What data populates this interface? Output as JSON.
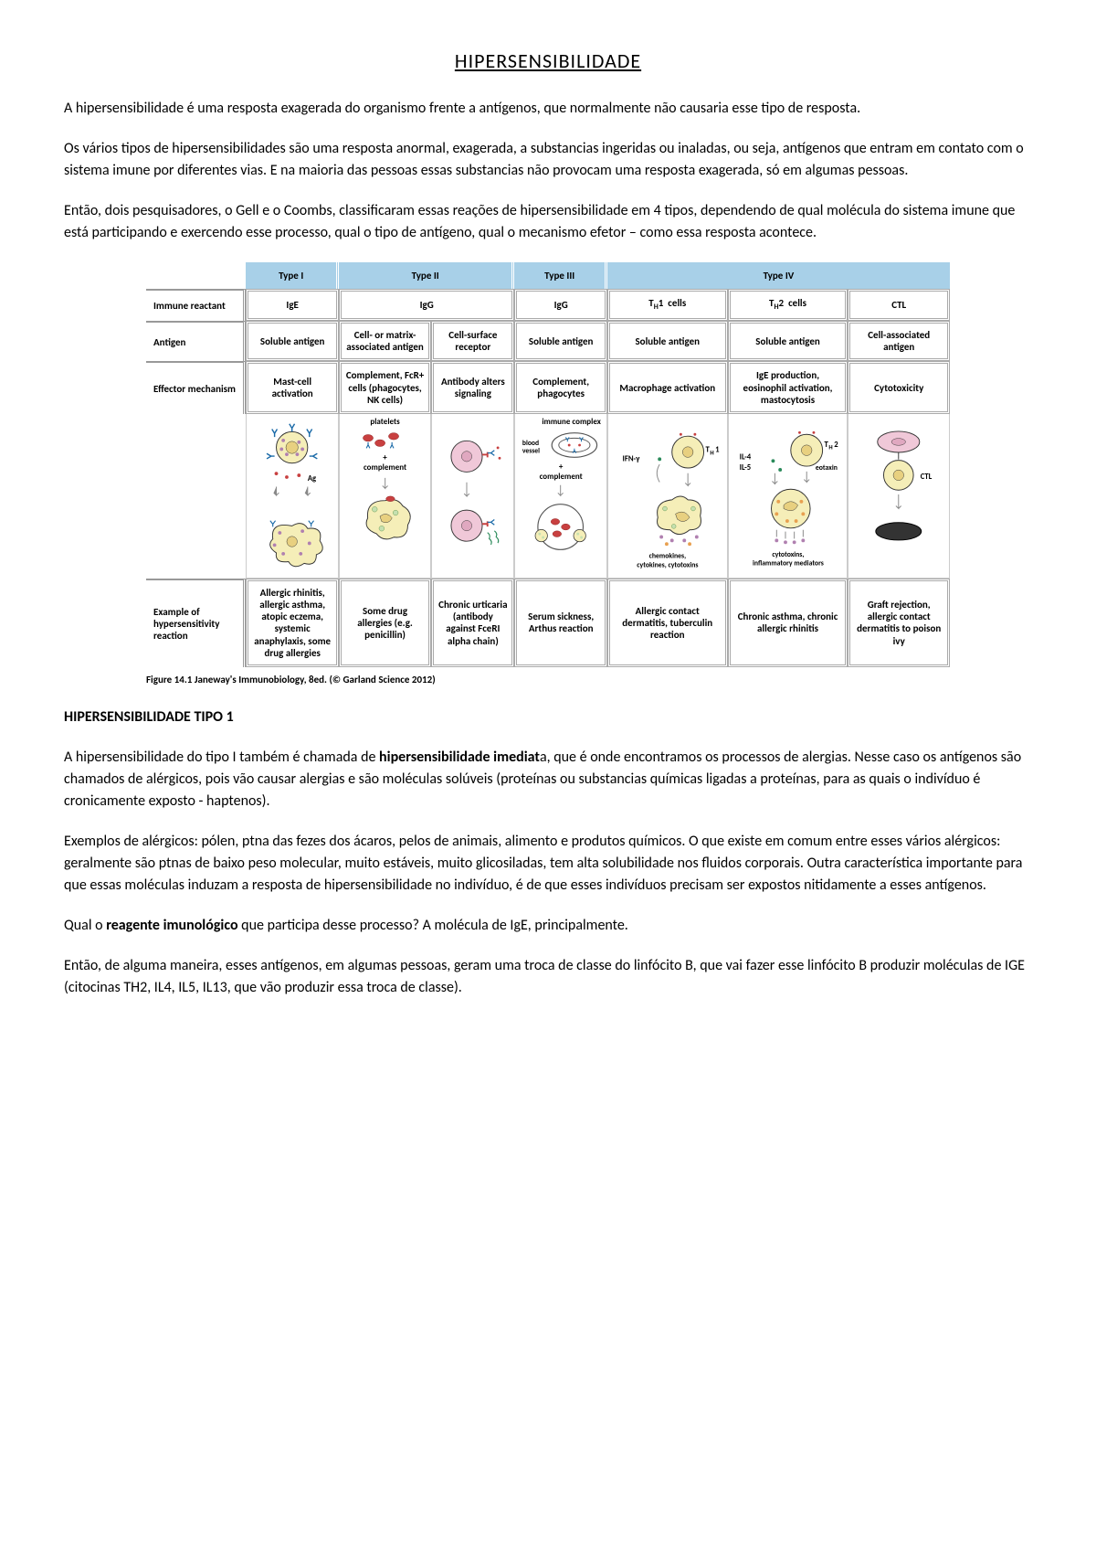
{
  "title": "HIPERSENSIBILIDADE",
  "paragraphs": {
    "p1": "A hipersensibilidade é uma resposta exagerada do organismo frente a antígenos, que normalmente não causaria esse tipo de resposta.",
    "p2": "Os vários tipos de hipersensibilidades são uma resposta anormal, exagerada, a substancias ingeridas ou inaladas, ou seja, antígenos que entram em contato com o sistema imune por diferentes vias. E na maioria das pessoas essas substancias não provocam uma resposta exagerada, só em algumas pessoas.",
    "p3": "Então, dois pesquisadores, o Gell e o Coombs, classificaram essas reações de hipersensibilidade em 4 tipos, dependendo de qual molécula do sistema imune que está participando e exercendo esse processo, qual o tipo de antígeno, qual o mecanismo efetor – como essa resposta acontece.",
    "p4a": "A hipersensibilidade do tipo I também é chamada de ",
    "p4b": "hipersensibilidade imediat",
    "p4c": "a, que é onde encontramos os processos de alergias. Nesse caso os antígenos são chamados de alérgicos, pois vão causar alergias e são moléculas solúveis (proteínas ou substancias químicas ligadas a proteínas, para as quais o indivíduo é cronicamente exposto - haptenos).",
    "p5": "Exemplos de alérgicos: pólen, ptna das fezes dos ácaros, pelos de animais, alimento e produtos químicos. O que existe em comum entre esses vários alérgicos: geralmente são ptnas de baixo peso molecular, muito estáveis, muito glicosiladas, tem alta solubilidade nos fluidos corporais. Outra característica importante para que essas moléculas induzam a resposta de hipersensibilidade no indivíduo, é de que esses indivíduos precisam ser expostos nitidamente a esses antígenos.",
    "p6a": "Qual o ",
    "p6b": "reagente imunológico",
    "p6c": " que participa desse processo? A molécula de IgE, principalmente.",
    "p7": "Então, de alguma maneira, esses antígenos, em algumas pessoas, geram uma troca de classe do linfócito B, que vai fazer esse linfócito B produzir moléculas de IGE (citocinas TH2, IL4, IL5, IL13, que vão produzir essa troca de classe)."
  },
  "section_heading": "HIPERSENSIBILIDADE TIPO 1",
  "table": {
    "header_bg": "#a8d0e8",
    "caption": "Figure 14.1  Janeway's Immunobiology, 8ed. (© Garland Science 2012)",
    "headers": {
      "type1": "Type I",
      "type2": "Type II",
      "type3": "Type III",
      "type4": "Type IV"
    },
    "rowlabels": {
      "immune": "Immune reactant",
      "antigen": "Antigen",
      "effector": "Effector mechanism",
      "example": "Example of hypersensitivity reaction"
    },
    "cells": {
      "immune": {
        "t1": "IgE",
        "t2": "IgG",
        "t3": "IgG",
        "t4a_html": "T<span class='sub'>H</span>1&nbsp;&nbsp;cells",
        "t4b_html": "T<span class='sub'>H</span>2&nbsp;&nbsp;cells",
        "t4c": "CTL"
      },
      "antigen": {
        "t1": "Soluble antigen",
        "t2a": "Cell- or matrix-associated antigen",
        "t2b": "Cell-surface receptor",
        "t3": "Soluble antigen",
        "t4a": "Soluble antigen",
        "t4b": "Soluble antigen",
        "t4c": "Cell-associated antigen"
      },
      "effector": {
        "t1": "Mast-cell activation",
        "t2a": "Complement, FcR+ cells (phagocytes, NK cells)",
        "t2b": "Antibody alters signaling",
        "t3": "Complement, phagocytes",
        "t4a": "Macrophage activation",
        "t4b": "IgE production, eosinophil activation, mastocytosis",
        "t4c": "Cytotoxicity"
      },
      "example": {
        "t1": "Allergic rhinitis, allergic asthma, atopic eczema, systemic anaphylaxis, some drug allergies",
        "t2a": "Some drug allergies (e.g. penicillin)",
        "t2b": "Chronic urticaria (antibody against FceRI alpha chain)",
        "t3": "Serum sickness, Arthus reaction",
        "t4a": "Allergic contact dermatitis, tuberculin reaction",
        "t4b": "Chronic asthma, chronic allergic rhinitis",
        "t4c": "Graft rejection, allergic contact dermatitis to poison ivy"
      }
    },
    "diagram": {
      "t1": {
        "ag": "Ag"
      },
      "t2a": {
        "platelets": "platelets",
        "plus": "+",
        "complement": "complement"
      },
      "t3": {
        "immune_complex": "immune complex",
        "blood_vessel": "blood vessel",
        "plus": "+",
        "complement": "complement"
      },
      "t4a": {
        "ifn": "IFN-γ",
        "th1": "T",
        "th1sub": "H",
        "th1num": "1",
        "chemo": "chemokines, cytokines, cytotoxins"
      },
      "t4b": {
        "th2": "T",
        "th2sub": "H",
        "th2num": "2",
        "il4": "IL-4",
        "il5": "IL-5",
        "eotaxin": "eotaxin",
        "cyto": "cytotoxins, inflammatory mediators"
      },
      "t4c": {
        "ctl": "CTL"
      }
    },
    "colors": {
      "cell_yellow": "#f5eeb8",
      "cell_pink": "#f0c8d8",
      "cell_green": "#c5e0b0",
      "cell_outline": "#333",
      "granule_purple": "#b080b0",
      "granule_orange": "#e8a050",
      "vessel_red": "#c84040",
      "arrow": "#888"
    }
  }
}
